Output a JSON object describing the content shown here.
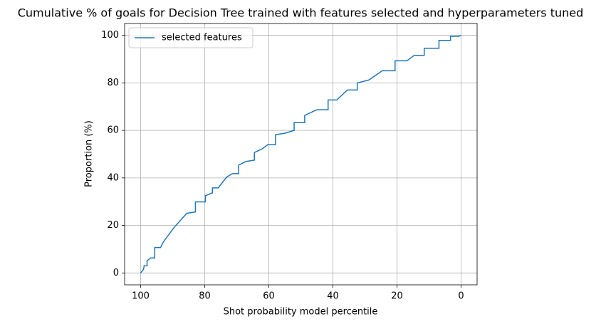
{
  "chart_data": {
    "type": "line",
    "title": "Cumulative % of goals for Decision Tree trained with features selected and hyperparameters tuned",
    "x_label": "Shot probability model percentile",
    "y_label": "Proportion (%)",
    "xlim": [
      105,
      -5
    ],
    "ylim": [
      -5,
      105
    ],
    "xticks": [
      100,
      80,
      60,
      40,
      20,
      0
    ],
    "yticks": [
      0,
      20,
      40,
      60,
      80,
      100
    ],
    "grid": true,
    "legend": "upper left",
    "series": [
      {
        "name": "selected features",
        "color": "#1f77b4",
        "x": [
          100,
          99.1,
          98.9,
          98,
          98,
          96.9,
          95.6,
          95.6,
          93.8,
          92.9,
          89.4,
          85.6,
          82.9,
          82.9,
          79.8,
          79.8,
          77.6,
          77.6,
          75.8,
          73.2,
          71.4,
          69.4,
          69.4,
          67.2,
          64.5,
          64.5,
          62.1,
          60.3,
          57.9,
          57.9,
          55,
          52.1,
          52.1,
          48.8,
          48.8,
          45,
          41.5,
          41.5,
          38.8,
          35.5,
          32.4,
          32.4,
          28.8,
          24.6,
          20.6,
          20.6,
          16.9,
          14.6,
          11.5,
          11.5,
          6.9,
          6.9,
          3.3,
          3.3,
          0.7,
          0
        ],
        "values": [
          0,
          1.5,
          3,
          3,
          5.1,
          6.3,
          6.3,
          10.7,
          10.7,
          13.1,
          19.4,
          25.1,
          25.7,
          29.9,
          29.9,
          32.5,
          33.7,
          35.8,
          35.8,
          40.3,
          41.8,
          41.8,
          45.4,
          46.9,
          47.5,
          50.7,
          52.2,
          54,
          54,
          58.2,
          58.8,
          60,
          63.3,
          63.3,
          66.3,
          68.7,
          68.7,
          72.8,
          72.8,
          77,
          77,
          80,
          81.2,
          85.1,
          85.1,
          89.3,
          89.3,
          91.6,
          91.6,
          94.6,
          94.6,
          97.9,
          97.9,
          99.6,
          99.6,
          100
        ]
      }
    ]
  }
}
